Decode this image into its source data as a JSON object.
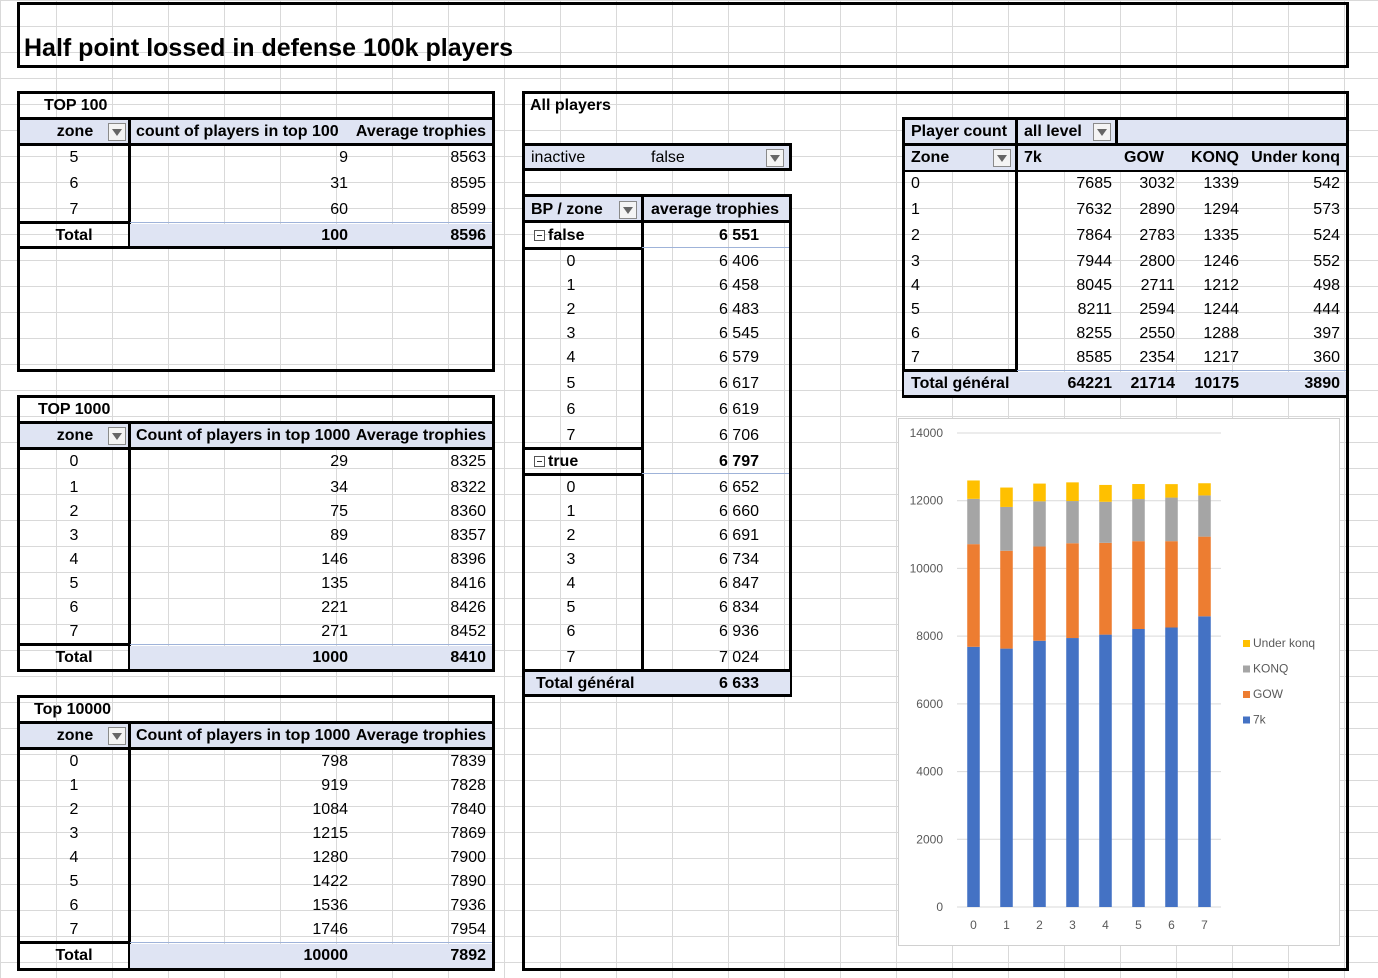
{
  "title": "Half point lossed in defense 100k players",
  "top100": {
    "label": "TOP 100",
    "headers": [
      "zone",
      "count of players in top 100",
      "Average trophies"
    ],
    "rows": [
      [
        "5",
        "9",
        "8563"
      ],
      [
        "6",
        "31",
        "8595"
      ],
      [
        "7",
        "60",
        "8599"
      ]
    ],
    "total": [
      "Total",
      "100",
      "8596"
    ]
  },
  "top1000": {
    "label": "TOP 1000",
    "headers": [
      "zone",
      "Count of players in top 1000",
      "Average trophies"
    ],
    "rows": [
      [
        "0",
        "29",
        "8325"
      ],
      [
        "1",
        "34",
        "8322"
      ],
      [
        "2",
        "75",
        "8360"
      ],
      [
        "3",
        "89",
        "8357"
      ],
      [
        "4",
        "146",
        "8396"
      ],
      [
        "5",
        "135",
        "8416"
      ],
      [
        "6",
        "221",
        "8426"
      ],
      [
        "7",
        "271",
        "8452"
      ]
    ],
    "total": [
      "Total",
      "1000",
      "8410"
    ]
  },
  "top10000": {
    "label": "Top 10000",
    "headers": [
      "zone",
      "Count of players in top 1000",
      "Average trophies"
    ],
    "rows": [
      [
        "0",
        "798",
        "7839"
      ],
      [
        "1",
        "919",
        "7828"
      ],
      [
        "2",
        "1084",
        "7840"
      ],
      [
        "3",
        "1215",
        "7869"
      ],
      [
        "4",
        "1280",
        "7900"
      ],
      [
        "5",
        "1422",
        "7890"
      ],
      [
        "6",
        "1536",
        "7936"
      ],
      [
        "7",
        "1746",
        "7954"
      ]
    ],
    "total": [
      "Total",
      "10000",
      "7892"
    ]
  },
  "all_players": {
    "label": "All players",
    "filter_label": "inactive",
    "filter_value": "false",
    "headers": [
      "BP / zone",
      "average trophies"
    ],
    "groups": [
      {
        "name": "false",
        "value": "6 551",
        "rows": [
          [
            "0",
            "6 406"
          ],
          [
            "1",
            "6 458"
          ],
          [
            "2",
            "6 483"
          ],
          [
            "3",
            "6 545"
          ],
          [
            "4",
            "6 579"
          ],
          [
            "5",
            "6 617"
          ],
          [
            "6",
            "6 619"
          ],
          [
            "7",
            "6 706"
          ]
        ]
      },
      {
        "name": "true",
        "value": "6 797",
        "rows": [
          [
            "0",
            "6 652"
          ],
          [
            "1",
            "6 660"
          ],
          [
            "2",
            "6 691"
          ],
          [
            "3",
            "6 734"
          ],
          [
            "4",
            "6 847"
          ],
          [
            "5",
            "6 834"
          ],
          [
            "6",
            "6 936"
          ],
          [
            "7",
            "7 024"
          ]
        ]
      }
    ],
    "total": [
      "Total général",
      "6 633"
    ]
  },
  "player_count": {
    "label": "Player count",
    "filter_value": "all level",
    "headers": [
      "Zone",
      "7k",
      "GOW",
      "KONQ",
      "Under konq"
    ],
    "rows": [
      [
        "0",
        "7685",
        "3032",
        "1339",
        "542"
      ],
      [
        "1",
        "7632",
        "2890",
        "1294",
        "573"
      ],
      [
        "2",
        "7864",
        "2783",
        "1335",
        "524"
      ],
      [
        "3",
        "7944",
        "2800",
        "1246",
        "552"
      ],
      [
        "4",
        "8045",
        "2711",
        "1212",
        "498"
      ],
      [
        "5",
        "8211",
        "2594",
        "1244",
        "444"
      ],
      [
        "6",
        "8255",
        "2550",
        "1288",
        "397"
      ],
      [
        "7",
        "8585",
        "2354",
        "1217",
        "360"
      ]
    ],
    "total": [
      "Total général",
      "64221",
      "21714",
      "10175",
      "3890"
    ]
  },
  "chart_data": {
    "type": "bar",
    "stacked": true,
    "categories": [
      "0",
      "1",
      "2",
      "3",
      "4",
      "5",
      "6",
      "7"
    ],
    "series": [
      {
        "name": "7k",
        "color": "#4472c4",
        "values": [
          7685,
          7632,
          7864,
          7944,
          8045,
          8211,
          8255,
          8585
        ]
      },
      {
        "name": "GOW",
        "color": "#ed7d31",
        "values": [
          3032,
          2890,
          2783,
          2800,
          2711,
          2594,
          2550,
          2354
        ]
      },
      {
        "name": "KONQ",
        "color": "#a5a5a5",
        "values": [
          1339,
          1294,
          1335,
          1246,
          1212,
          1244,
          1288,
          1217
        ]
      },
      {
        "name": "Under konq",
        "color": "#ffc000",
        "values": [
          542,
          573,
          524,
          552,
          498,
          444,
          397,
          360
        ]
      }
    ],
    "ylim": [
      0,
      14000
    ],
    "yticks": [
      "0",
      "2000",
      "4000",
      "6000",
      "8000",
      "10000",
      "12000",
      "14000"
    ],
    "legend_position": "right",
    "grid": true
  }
}
